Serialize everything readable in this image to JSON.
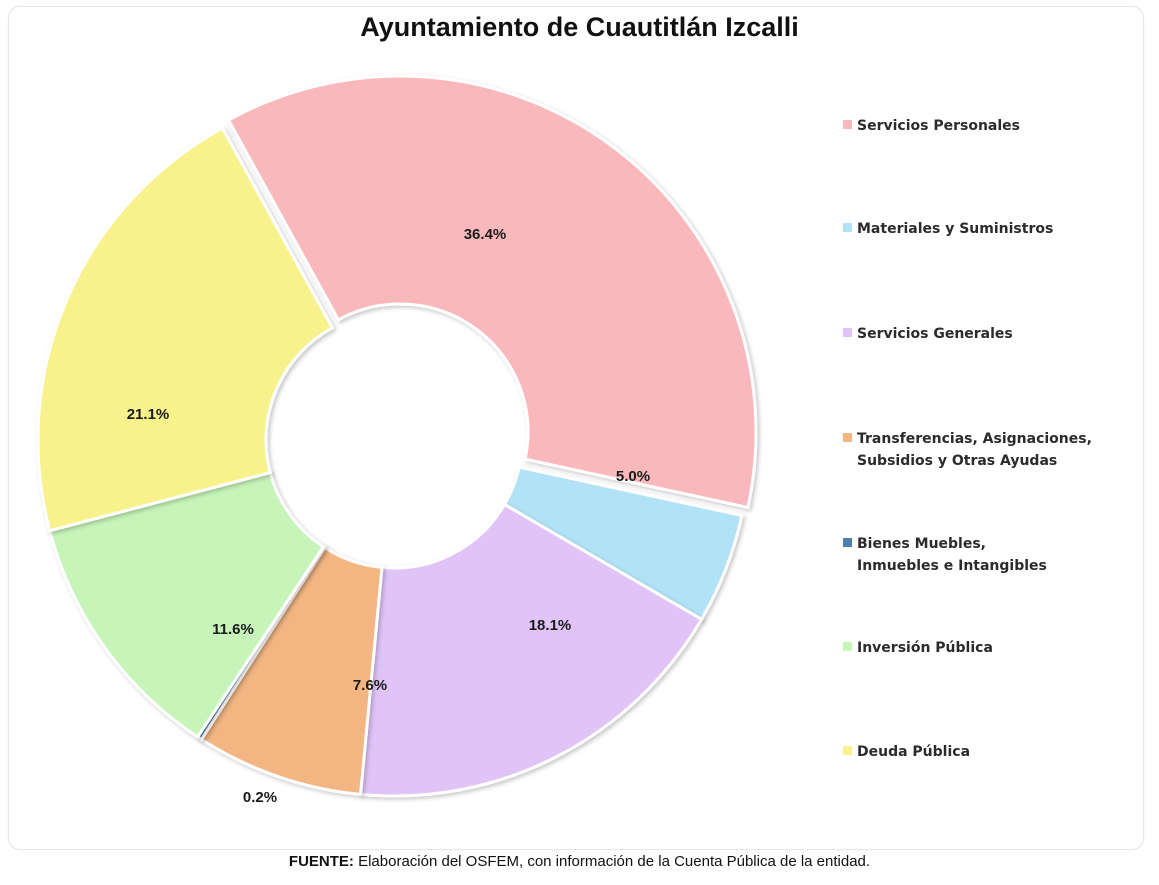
{
  "chart_data": {
    "type": "pie",
    "title": "Ayuntamiento de Cuautitlán Izcalli",
    "categories": [
      "Servicios Personales",
      "Materiales y Suministros",
      "Servicios Generales",
      "Transferencias, Asignaciones,\nSubsidios y Otras Ayudas",
      "Bienes Muebles,\nInmuebles e Intangibles",
      "Inversión Pública",
      "Deuda Pública"
    ],
    "values": [
      36.4,
      5.0,
      18.1,
      7.6,
      0.2,
      11.6,
      21.1
    ],
    "data_labels": [
      "36.4%",
      "5.0%",
      "18.1%",
      "7.6%",
      "0.2%",
      "11.6%",
      "21.1%"
    ],
    "colors": [
      "#f9b9bc",
      "#b1e2f6",
      "#e0c4f8",
      "#f3b683",
      "#4f7fb1",
      "#c7f5b9",
      "#f8f28c"
    ],
    "hole": "donut",
    "legend_position": "right"
  },
  "source": {
    "label": "FUENTE:",
    "text": " Elaboración del OSFEM, con información de la Cuenta Pública de la entidad."
  }
}
